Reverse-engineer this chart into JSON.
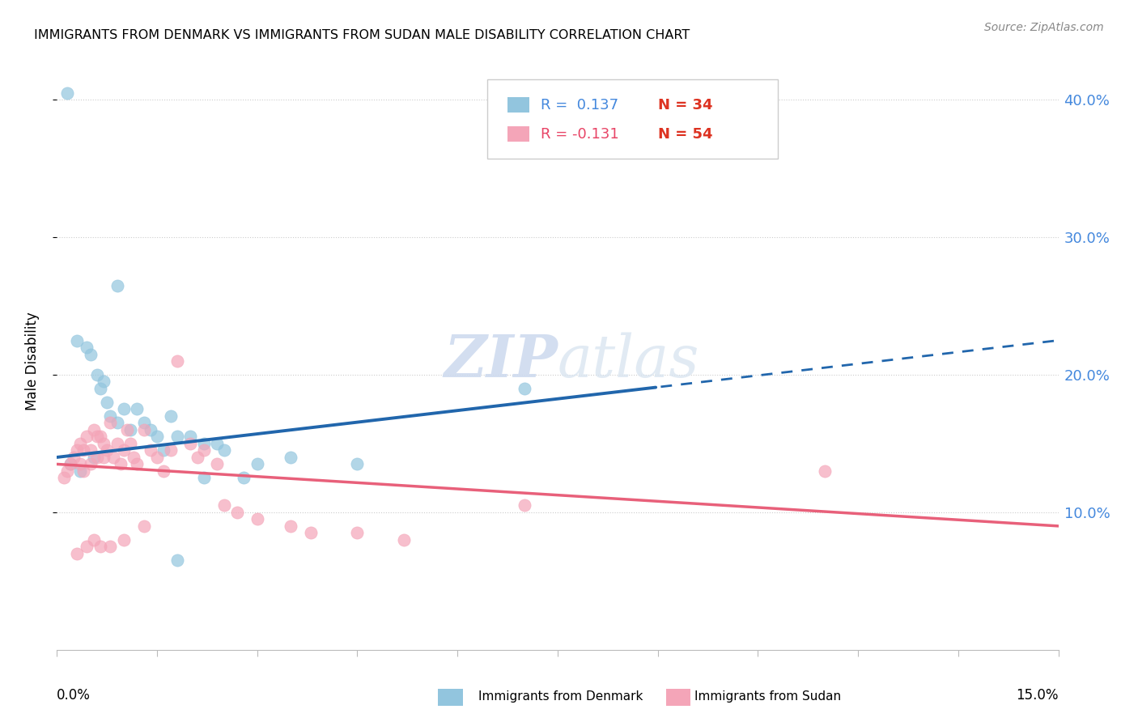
{
  "title": "IMMIGRANTS FROM DENMARK VS IMMIGRANTS FROM SUDAN MALE DISABILITY CORRELATION CHART",
  "source": "Source: ZipAtlas.com",
  "ylabel": "Male Disability",
  "x_min": 0.0,
  "x_max": 15.0,
  "y_min": 0.0,
  "y_max": 42.0,
  "yticks": [
    10.0,
    20.0,
    30.0,
    40.0
  ],
  "xtick_count": 10,
  "denmark_R": 0.137,
  "denmark_N": 34,
  "sudan_R": -0.131,
  "sudan_N": 54,
  "denmark_color": "#92c5de",
  "sudan_color": "#f4a5b8",
  "denmark_line_color": "#2166ac",
  "sudan_line_color": "#e8607a",
  "watermark": "ZIPatlas",
  "denmark_line_x0": 0.0,
  "denmark_line_y0": 14.0,
  "denmark_line_x1": 15.0,
  "denmark_line_y1": 22.5,
  "denmark_solid_end": 9.0,
  "sudan_line_x0": 0.0,
  "sudan_line_y0": 13.5,
  "sudan_line_x1": 15.0,
  "sudan_line_y1": 9.0,
  "denmark_points_x": [
    0.15,
    0.9,
    0.3,
    0.45,
    0.5,
    0.6,
    0.65,
    0.7,
    0.75,
    0.8,
    0.9,
    1.0,
    1.1,
    1.2,
    1.3,
    1.4,
    1.5,
    1.7,
    1.8,
    2.0,
    2.2,
    2.4,
    2.5,
    2.8,
    3.0,
    3.5,
    4.5,
    7.0,
    0.2,
    0.35,
    0.55,
    1.6,
    2.2,
    1.8
  ],
  "denmark_points_y": [
    40.5,
    26.5,
    22.5,
    22.0,
    21.5,
    20.0,
    19.0,
    19.5,
    18.0,
    17.0,
    16.5,
    17.5,
    16.0,
    17.5,
    16.5,
    16.0,
    15.5,
    17.0,
    15.5,
    15.5,
    15.0,
    15.0,
    14.5,
    12.5,
    13.5,
    14.0,
    13.5,
    19.0,
    13.5,
    13.0,
    14.0,
    14.5,
    12.5,
    6.5
  ],
  "sudan_points_x": [
    0.1,
    0.15,
    0.2,
    0.25,
    0.3,
    0.35,
    0.35,
    0.4,
    0.4,
    0.45,
    0.5,
    0.5,
    0.55,
    0.6,
    0.6,
    0.65,
    0.7,
    0.7,
    0.75,
    0.8,
    0.85,
    0.9,
    0.95,
    1.0,
    1.05,
    1.1,
    1.15,
    1.2,
    1.3,
    1.4,
    1.5,
    1.6,
    1.7,
    1.8,
    2.0,
    2.1,
    2.2,
    2.4,
    2.7,
    3.0,
    3.5,
    3.8,
    4.5,
    5.2,
    7.0,
    11.5,
    0.3,
    0.45,
    0.55,
    0.65,
    0.8,
    1.0,
    1.3,
    2.5
  ],
  "sudan_points_y": [
    12.5,
    13.0,
    13.5,
    14.0,
    14.5,
    15.0,
    13.5,
    14.5,
    13.0,
    15.5,
    14.5,
    13.5,
    16.0,
    15.5,
    14.0,
    15.5,
    14.0,
    15.0,
    14.5,
    16.5,
    14.0,
    15.0,
    13.5,
    14.5,
    16.0,
    15.0,
    14.0,
    13.5,
    16.0,
    14.5,
    14.0,
    13.0,
    14.5,
    21.0,
    15.0,
    14.0,
    14.5,
    13.5,
    10.0,
    9.5,
    9.0,
    8.5,
    8.5,
    8.0,
    10.5,
    13.0,
    7.0,
    7.5,
    8.0,
    7.5,
    7.5,
    8.0,
    9.0,
    10.5
  ]
}
